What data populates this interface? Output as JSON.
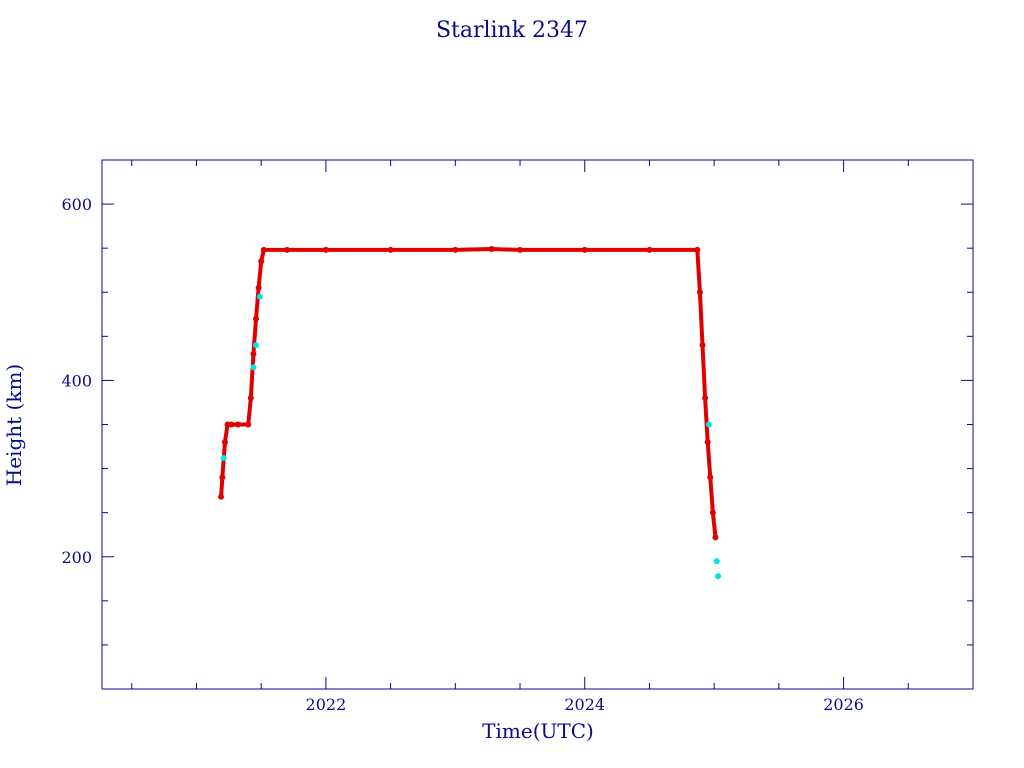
{
  "chart_data": {
    "type": "scatter",
    "title": "Starlink 2347",
    "xlabel": "Time(UTC)",
    "ylabel": "Height (km)",
    "xlim": [
      2020.27,
      2027.0
    ],
    "ylim": [
      50,
      650
    ],
    "x_ticks": [
      2022,
      2024,
      2026
    ],
    "y_ticks": [
      200,
      400,
      600
    ],
    "x_minor_ticks": [
      2020.5,
      2021.0,
      2021.5,
      2022.5,
      2023.0,
      2023.5,
      2024.5,
      2025.0,
      2025.5,
      2026.5
    ],
    "y_minor_ticks": [
      100,
      150,
      250,
      300,
      350,
      450,
      500,
      550
    ],
    "grid": false,
    "colors": {
      "axes": "#0a0a8c",
      "series": "#e00000",
      "series_alt": "#00e5e5",
      "line": "#555555"
    },
    "series": [
      {
        "color": "#e00000",
        "x": [
          2021.19,
          2021.2,
          2021.22,
          2021.24,
          2021.27,
          2021.32,
          2021.4,
          2021.42,
          2021.44,
          2021.46,
          2021.48,
          2021.5,
          2021.52,
          2021.7,
          2022.0,
          2022.5,
          2023.0,
          2023.28,
          2023.5,
          2024.0,
          2024.5,
          2024.87,
          2024.89,
          2024.91,
          2024.93,
          2024.95,
          2024.97,
          2024.99,
          2025.01
        ],
        "y": [
          268,
          290,
          330,
          350,
          350,
          350,
          350,
          380,
          430,
          470,
          505,
          535,
          548,
          548,
          548,
          548,
          548,
          549,
          548,
          548,
          548,
          548,
          500,
          440,
          380,
          330,
          290,
          250,
          222
        ]
      },
      {
        "color": "#00e5e5",
        "x": [
          2021.21,
          2021.44,
          2021.46,
          2021.49,
          2024.96,
          2025.02,
          2025.03
        ],
        "y": [
          312,
          415,
          440,
          495,
          350,
          195,
          178
        ]
      }
    ]
  }
}
